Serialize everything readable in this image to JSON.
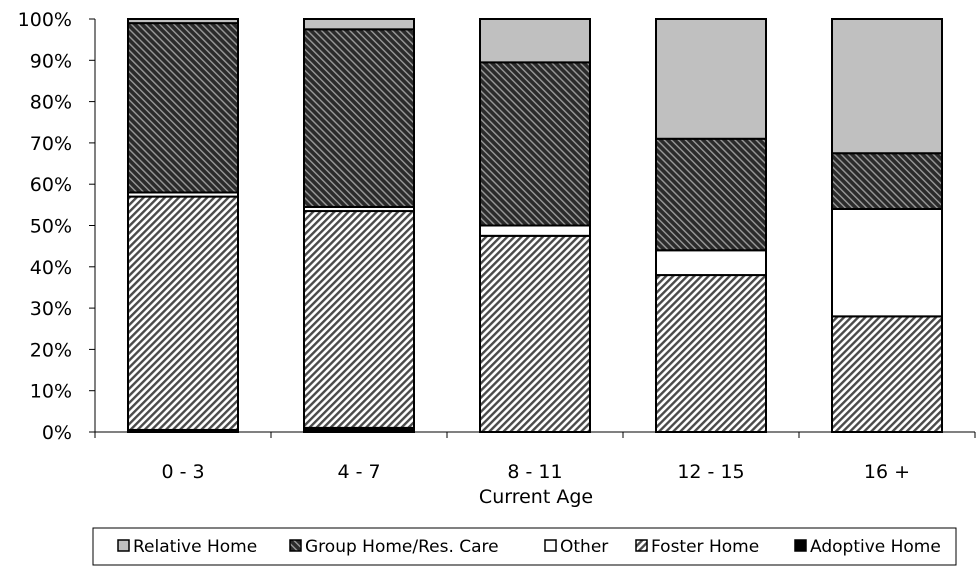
{
  "chart_data": {
    "type": "bar",
    "stacked": true,
    "xlabel": "Current Age",
    "ylabel": "",
    "categories": [
      "0 - 3",
      "4 - 7",
      "8 - 11",
      "12 - 15",
      "16 +"
    ],
    "ylim": [
      0,
      100
    ],
    "yticks": [
      "0%",
      "10%",
      "20%",
      "30%",
      "40%",
      "50%",
      "60%",
      "70%",
      "80%",
      "90%",
      "100%"
    ],
    "grid": false,
    "legend_position": "bottom",
    "series": [
      {
        "name": "Adoptive Home",
        "pattern": "solid-black",
        "values": [
          0.5,
          1,
          0,
          0,
          0
        ]
      },
      {
        "name": "Foster Home",
        "pattern": "light-diagonal-hatch",
        "values": [
          56.5,
          52.5,
          47.5,
          38,
          28
        ]
      },
      {
        "name": "Other",
        "pattern": "white",
        "values": [
          1,
          1,
          2.5,
          6,
          26
        ]
      },
      {
        "name": "Group Home/Res. Care",
        "pattern": "dark-diagonal-hatch",
        "values": [
          41,
          43,
          39.5,
          27,
          13.5
        ]
      },
      {
        "name": "Relative Home",
        "pattern": "light-gray",
        "values": [
          1,
          2.5,
          10.5,
          29,
          32.5
        ]
      }
    ],
    "legend_order": [
      "Relative Home",
      "Group Home/Res. Care",
      "Other",
      "Foster Home",
      "Adoptive Home"
    ]
  }
}
